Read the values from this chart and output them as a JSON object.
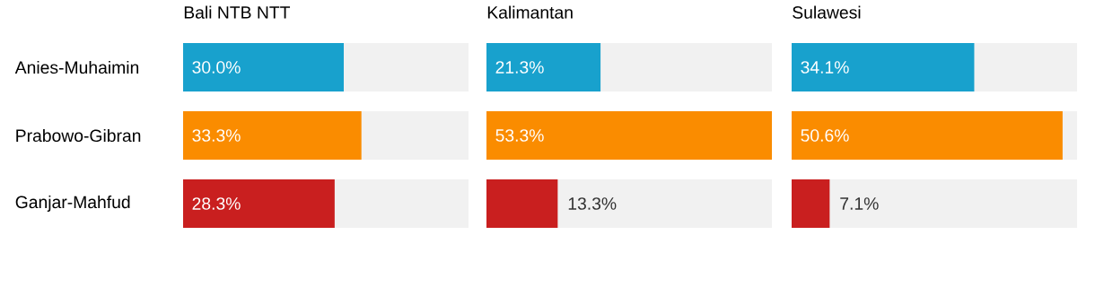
{
  "chart_data": [
    {
      "type": "bar",
      "orientation": "horizontal",
      "title": "Bali NTB NTT",
      "categories": [
        "Anies-Muhaimin",
        "Prabowo-Gibran",
        "Ganjar-Mahfud"
      ],
      "values": [
        30.0,
        33.3,
        28.3
      ],
      "value_labels": [
        "30.0%",
        "33.3%",
        "28.3%"
      ],
      "colors": [
        "#18a1cd",
        "#fa8c00",
        "#c91f1f"
      ],
      "xlim": [
        0,
        53.3
      ],
      "tick_labels": "y"
    },
    {
      "type": "bar",
      "orientation": "horizontal",
      "title": "Kalimantan",
      "categories": [
        null,
        null,
        null
      ],
      "values": [
        21.3,
        53.3,
        13.3
      ],
      "value_labels": [
        "21.3%",
        "53.3%",
        "13.3%"
      ],
      "colors": [
        "#18a1cd",
        "#fa8c00",
        "#c91f1f"
      ],
      "xlim": [
        0,
        53.3
      ],
      "tick_labels": false
    },
    {
      "type": "bar",
      "orientation": "horizontal",
      "title": "Sulawesi",
      "categories": [
        null,
        null,
        null
      ],
      "values": [
        34.1,
        50.6,
        7.1
      ],
      "value_labels": [
        "34.1%",
        "50.6%",
        "7.1%"
      ],
      "colors": [
        "#18a1cd",
        "#fa8c00",
        "#c91f1f"
      ],
      "xlim": [
        0,
        53.3
      ],
      "tick_labels": false
    }
  ]
}
